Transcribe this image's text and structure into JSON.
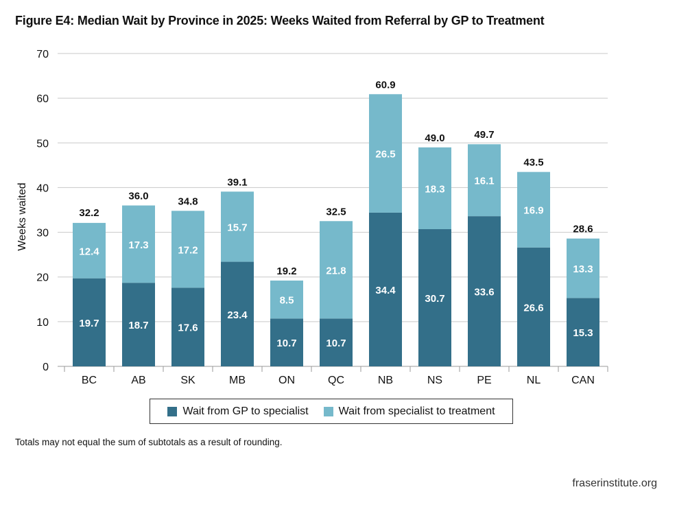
{
  "title": "Figure E4: Median Wait by Province in 2025: Weeks Waited from Referral by GP to Treatment",
  "note": "Totals may not equal the sum of subtotals as a result of rounding.",
  "source": "fraserinstitute.org",
  "colors": {
    "gp_to_specialist": "#336f89",
    "specialist_to_treatment": "#76b9cb",
    "grid": "#c8c8c8"
  },
  "chart_data": {
    "type": "bar",
    "stacked": true,
    "title": "Figure E4: Median Wait by Province in 2025: Weeks Waited from Referral by GP to Treatment",
    "xlabel": "",
    "ylabel": "Weeks waited",
    "ylim": [
      0,
      70
    ],
    "yticks": [
      "0",
      "10",
      "20",
      "30",
      "40",
      "50",
      "60",
      "70"
    ],
    "grid": true,
    "legend_position": "bottom",
    "categories": [
      "BC",
      "AB",
      "SK",
      "MB",
      "ON",
      "QC",
      "NB",
      "NS",
      "PE",
      "NL",
      "CAN"
    ],
    "series": [
      {
        "name": "Wait from GP to specialist",
        "values": [
          19.7,
          18.7,
          17.6,
          23.4,
          10.7,
          10.7,
          34.4,
          30.7,
          33.6,
          26.6,
          15.3
        ]
      },
      {
        "name": "Wait from specialist to treatment",
        "values": [
          12.4,
          17.3,
          17.2,
          15.7,
          8.5,
          21.8,
          26.5,
          18.3,
          16.1,
          16.9,
          13.3
        ]
      }
    ],
    "totals": [
      32.2,
      36.0,
      34.8,
      39.1,
      19.2,
      32.5,
      60.9,
      49.0,
      49.7,
      43.5,
      28.6
    ]
  }
}
